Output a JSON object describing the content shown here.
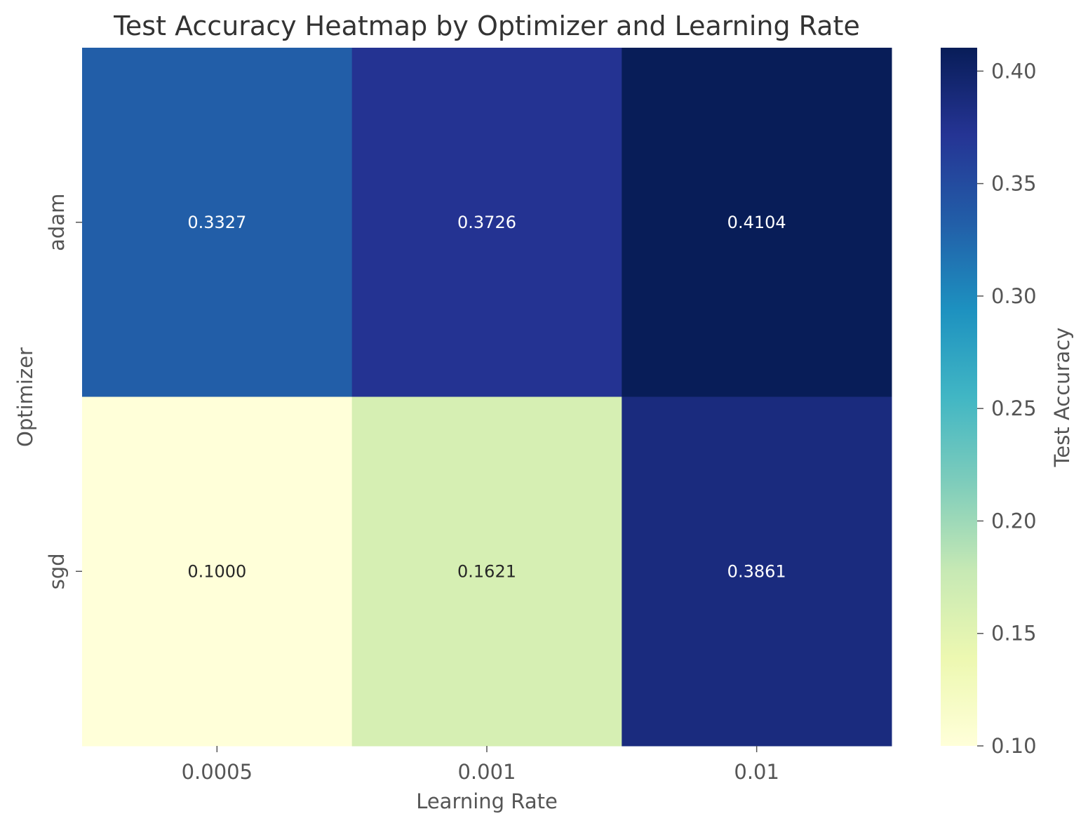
{
  "chart_data": {
    "type": "heatmap",
    "title": "Test Accuracy Heatmap by Optimizer and Learning Rate",
    "xlabel": "Learning Rate",
    "ylabel": "Optimizer",
    "x_categories": [
      "0.0005",
      "0.001",
      "0.01"
    ],
    "y_categories": [
      "adam",
      "sgd"
    ],
    "values": [
      [
        0.3327,
        0.3726,
        0.4104
      ],
      [
        0.1,
        0.1621,
        0.3861
      ]
    ],
    "value_labels": [
      [
        "0.3327",
        "0.3726",
        "0.4104"
      ],
      [
        "0.1000",
        "0.1621",
        "0.3861"
      ]
    ],
    "colormap": "YlGnBu",
    "colorbar": {
      "label": "Test Accuracy",
      "range": [
        0.1,
        0.4104
      ],
      "ticks": [
        0.1,
        0.15,
        0.2,
        0.25,
        0.3,
        0.35,
        0.4
      ],
      "tick_labels": [
        "0.10",
        "0.15",
        "0.20",
        "0.25",
        "0.30",
        "0.35",
        "0.40"
      ]
    },
    "grid": false
  }
}
